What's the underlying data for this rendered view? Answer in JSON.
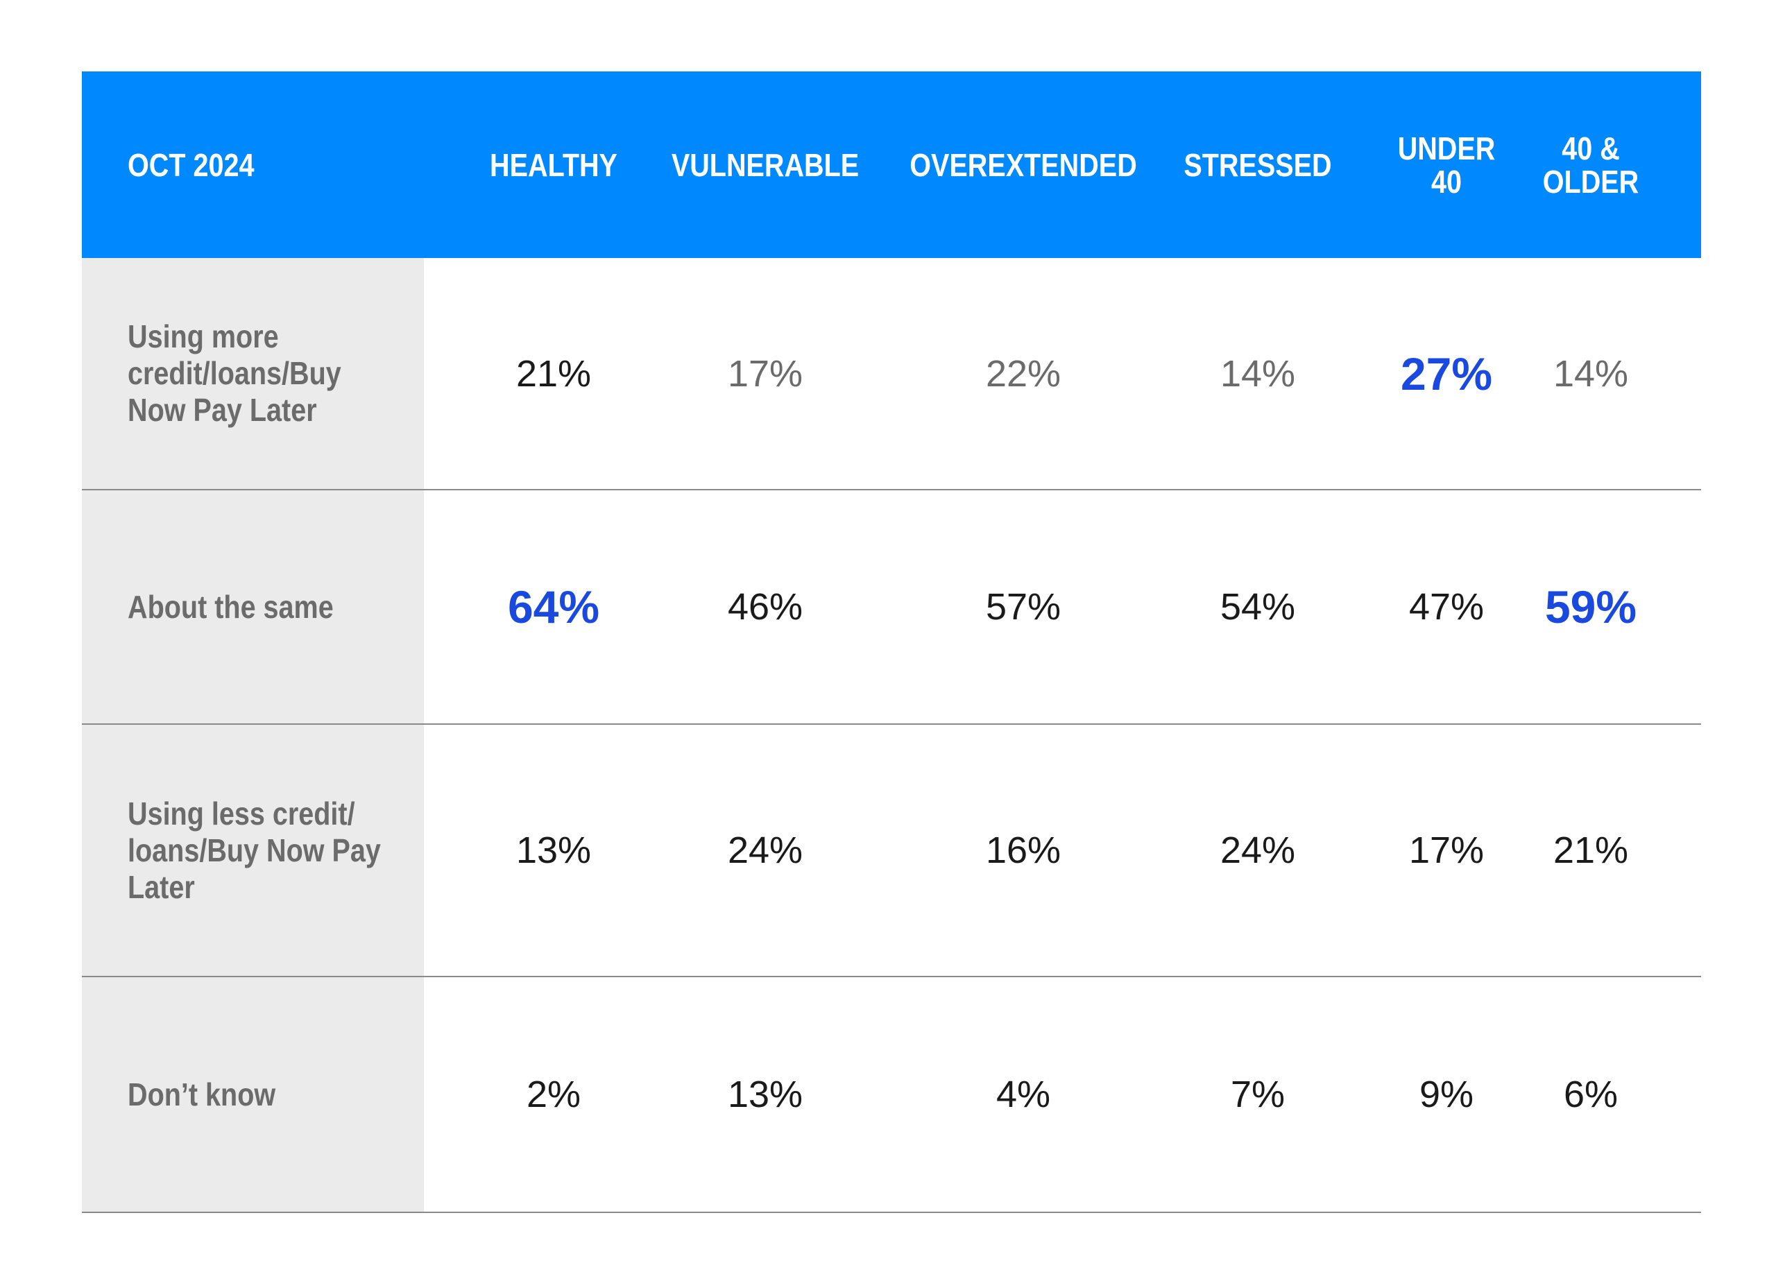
{
  "chart_data": {
    "type": "table",
    "title": "OCT 2024",
    "columns": [
      "HEALTHY",
      "VULNERABLE",
      "OVEREXTENDED",
      "STRESSED",
      "UNDER 40",
      "40 & OLDER"
    ],
    "header_lines": [
      [
        "HEALTHY"
      ],
      [
        "VULNERABLE"
      ],
      [
        "OVEREXTENDED"
      ],
      [
        "STRESSED"
      ],
      [
        "UNDER",
        "40"
      ],
      [
        "40 &",
        "OLDER"
      ]
    ],
    "rows": [
      {
        "label": "Using more credit/loans/Buy Now Pay Later",
        "values": [
          "21%",
          "17%",
          "22%",
          "14%",
          "27%",
          "14%"
        ],
        "styles": [
          "dark",
          "gray",
          "gray",
          "gray",
          "hl",
          "gray"
        ]
      },
      {
        "label": "About the same",
        "values": [
          "64%",
          "46%",
          "57%",
          "54%",
          "47%",
          "59%"
        ],
        "styles": [
          "hl",
          "dark",
          "dark",
          "dark",
          "dark",
          "hl"
        ]
      },
      {
        "label": "Using less credit/ loans/Buy Now Pay Later",
        "values": [
          "13%",
          "24%",
          "16%",
          "24%",
          "17%",
          "21%"
        ],
        "styles": [
          "dark",
          "dark",
          "dark",
          "dark",
          "dark",
          "dark"
        ]
      },
      {
        "label": "Don’t know",
        "values": [
          "2%",
          "13%",
          "4%",
          "7%",
          "9%",
          "6%"
        ],
        "styles": [
          "dark",
          "dark",
          "dark",
          "dark",
          "dark",
          "dark"
        ]
      }
    ],
    "colors": {
      "header_bg": "#0088ff",
      "highlight": "#1a49e0",
      "label_bg": "#ebebeb"
    }
  }
}
